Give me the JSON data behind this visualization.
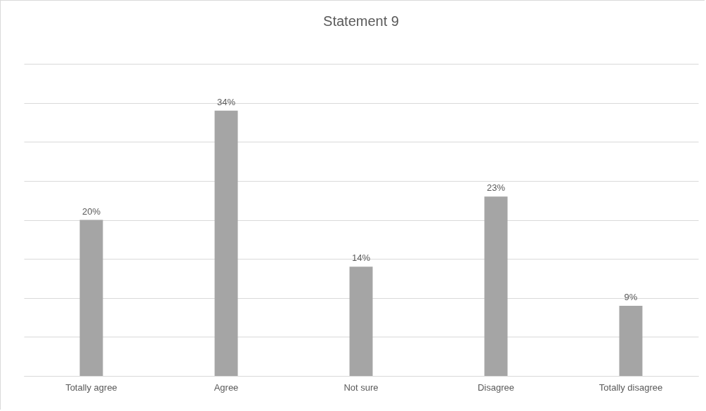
{
  "chart_data": {
    "type": "bar",
    "title": "Statement 9",
    "categories": [
      "Totally agree",
      "Agree",
      "Not sure",
      "Disagree",
      "Totally disagree"
    ],
    "values": [
      20,
      34,
      14,
      23,
      9
    ],
    "value_labels": [
      "20%",
      "34%",
      "14%",
      "23%",
      "9%"
    ],
    "color": "#a5a5a5",
    "ylim": [
      0,
      40
    ],
    "yticks": [
      {
        "value": 0,
        "label": null
      },
      {
        "value": 5,
        "label": null
      },
      {
        "value": 10,
        "label": null
      },
      {
        "value": 15,
        "label": null
      },
      {
        "value": 20,
        "label": null
      },
      {
        "value": 25,
        "label": null
      },
      {
        "value": 30,
        "label": null
      },
      {
        "value": 35,
        "label": null
      },
      {
        "value": 40,
        "label": null
      }
    ],
    "grid": "y",
    "tick_labels": "x"
  }
}
